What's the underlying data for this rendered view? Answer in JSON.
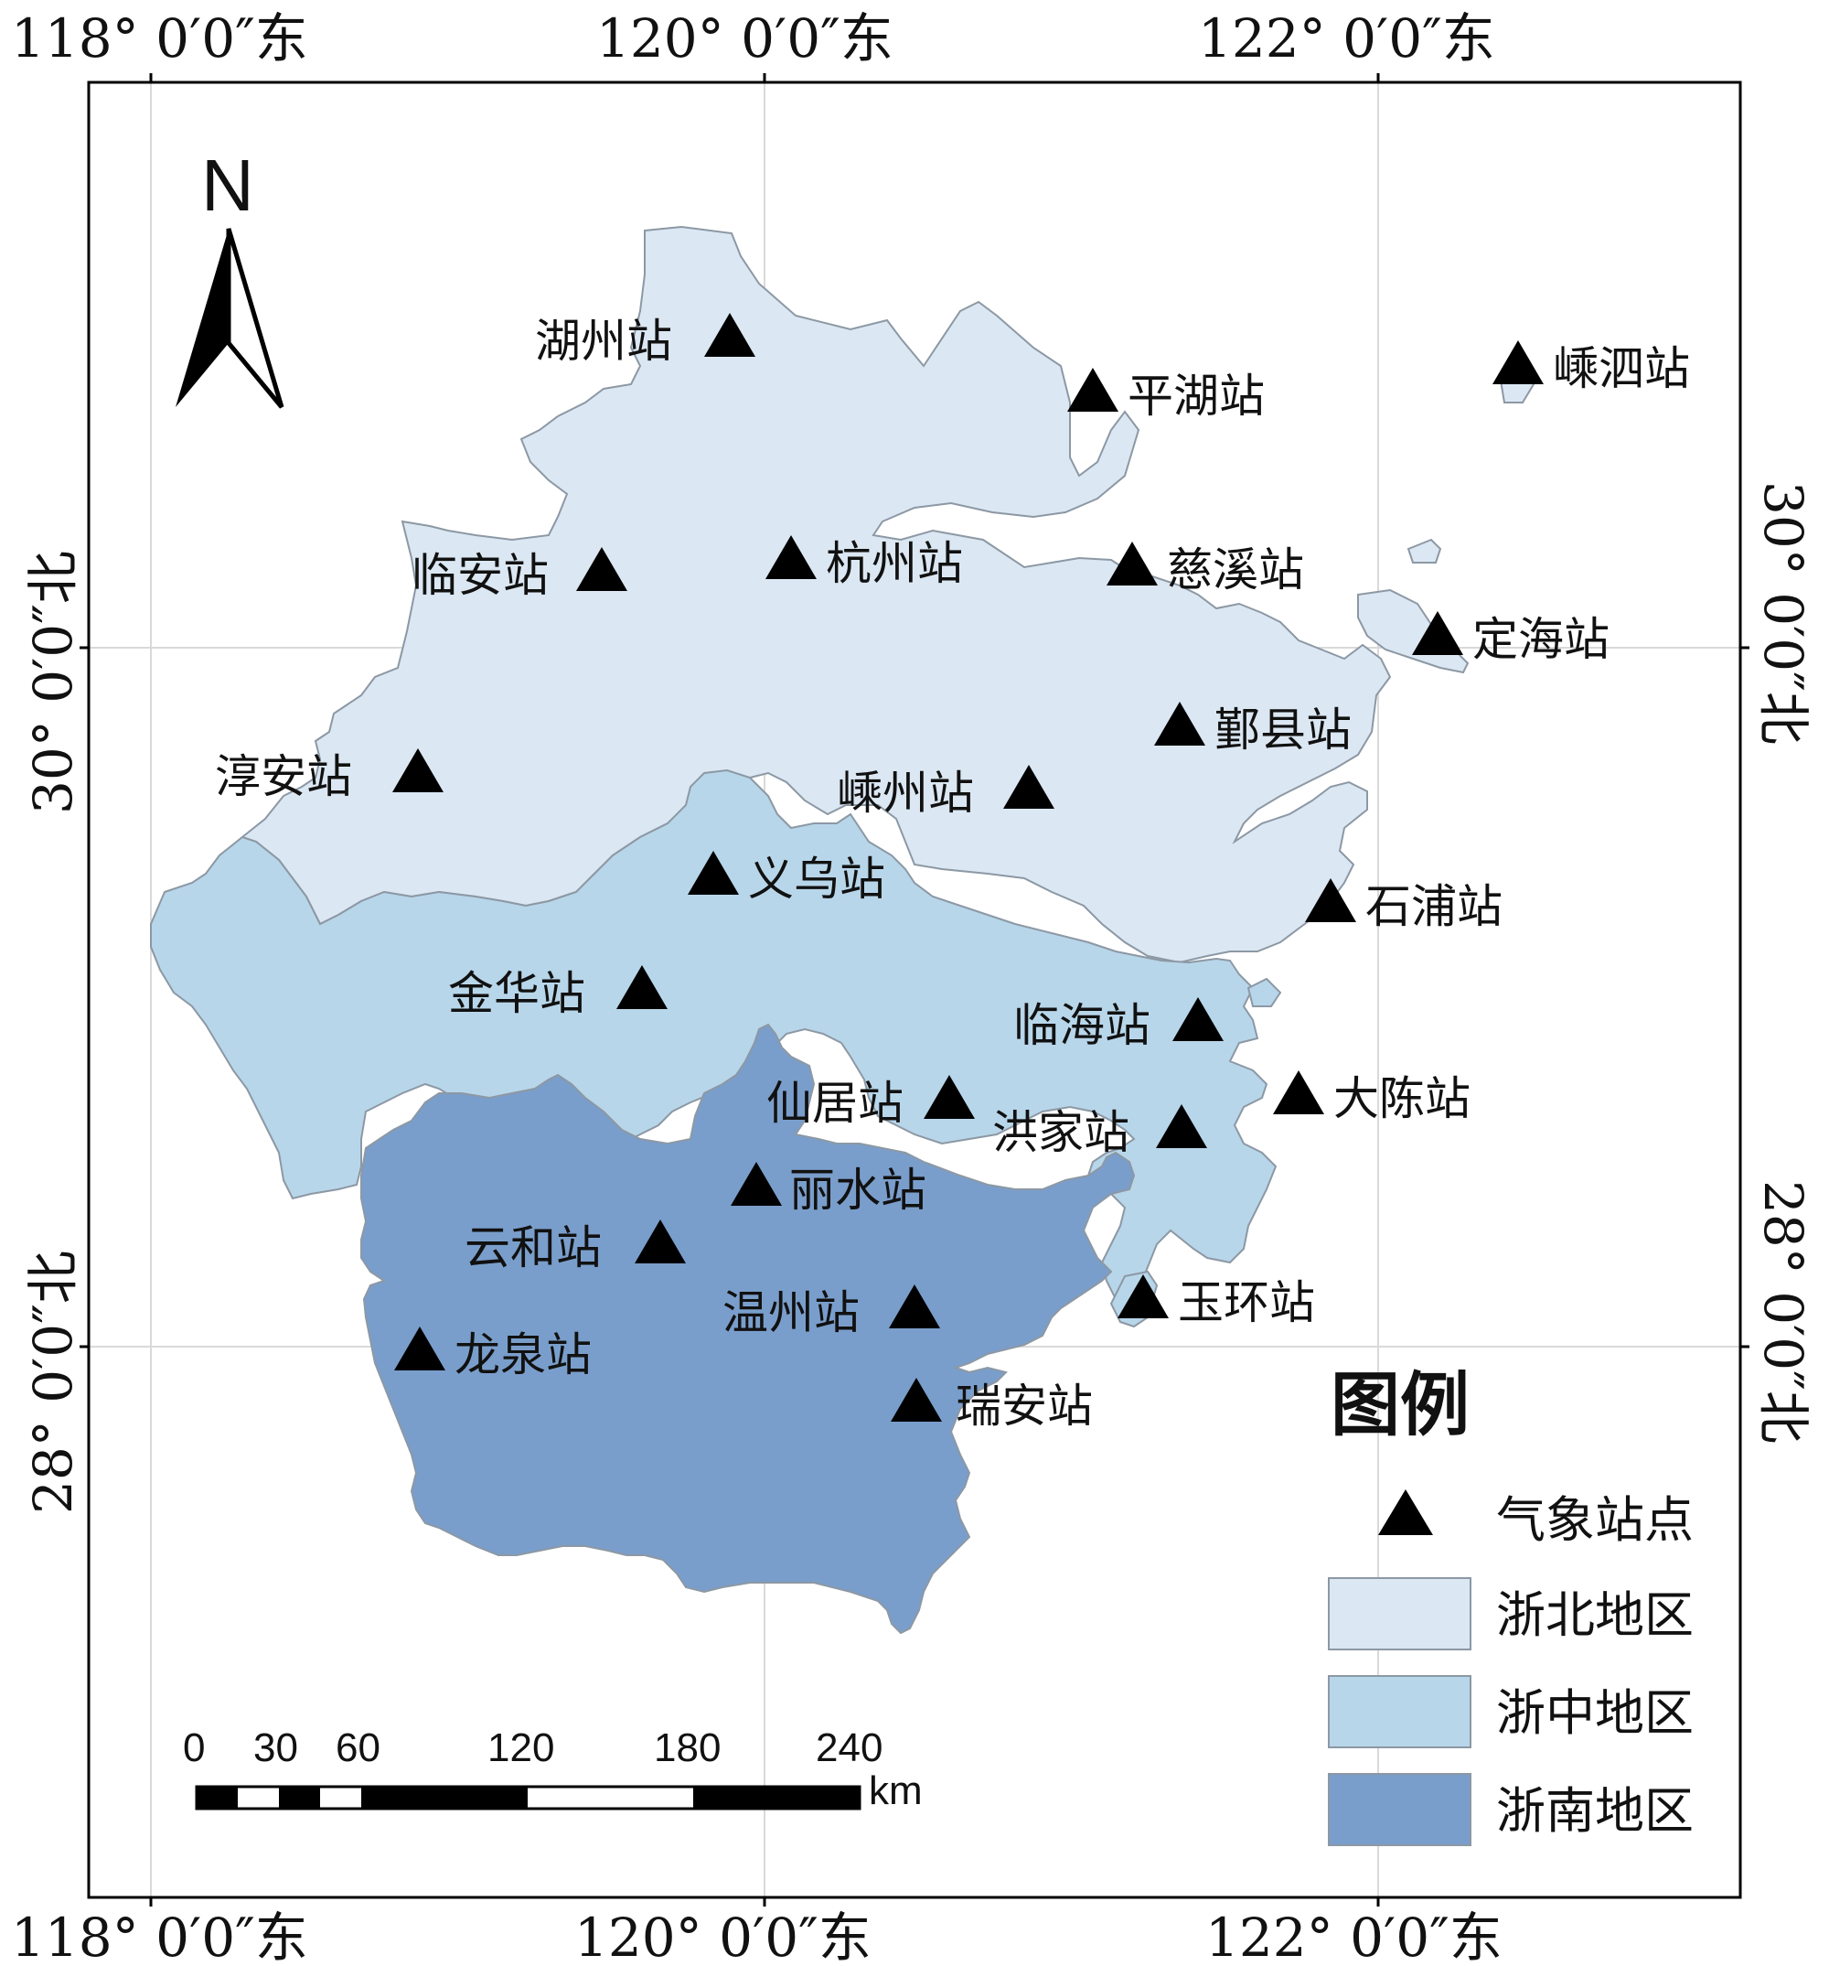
{
  "colors": {
    "north": "#dbe7f2",
    "central": "#b8d6ea",
    "south": "#7a9ecb",
    "marker": "#000000",
    "frame": "#000000",
    "grid": "#d9d9d9"
  },
  "coords": {
    "top": [
      "118° 0′0″东",
      "120° 0′0″东",
      "122° 0′0″东"
    ],
    "bottom": [
      "118° 0′0″东",
      "120° 0′0″东",
      "122° 0′0″东"
    ],
    "left": [
      "30° 0′0″北",
      "28° 0′0″北"
    ],
    "right": [
      "30° 0′0″北",
      "28° 0′0″北"
    ]
  },
  "north_arrow": {
    "label": "N"
  },
  "regions": [
    {
      "key": "north",
      "name": "浙北地区"
    },
    {
      "key": "central",
      "name": "浙中地区"
    },
    {
      "key": "south",
      "name": "浙南地区"
    }
  ],
  "stations": [
    "湖州站",
    "嵊泗站",
    "平湖站",
    "临安站",
    "杭州站",
    "慈溪站",
    "定海站",
    "鄞县站",
    "淳安站",
    "嵊州站",
    "义乌站",
    "石浦站",
    "金华站",
    "临海站",
    "仙居站",
    "大陈站",
    "洪家站",
    "丽水站",
    "云和站",
    "温州站",
    "玉环站",
    "龙泉站",
    "瑞安站"
  ],
  "legend": {
    "title": "图例",
    "items": [
      {
        "label": "气象站点",
        "symbol": "triangle-icon"
      },
      {
        "label": "浙北地区",
        "symbol": "north"
      },
      {
        "label": "浙中地区",
        "symbol": "central"
      },
      {
        "label": "浙南地区",
        "symbol": "south"
      }
    ]
  },
  "scale_bar": {
    "ticks": [
      "0",
      "30",
      "60",
      "120",
      "180",
      "240"
    ],
    "unit": "km"
  }
}
